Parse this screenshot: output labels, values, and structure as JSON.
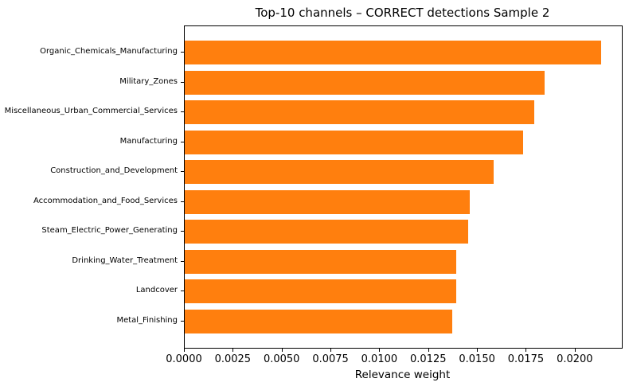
{
  "figure": {
    "background": "#ffffff"
  },
  "chart_data": {
    "type": "bar",
    "orientation": "horizontal",
    "title": "Top-10 channels – CORRECT detections Sample 2",
    "xlabel": "Relevance weight",
    "ylabel": "",
    "categories": [
      "Organic_Chemicals_Manufacturing",
      "Military_Zones",
      "Miscellaneous_Urban_Commercial_Services",
      "Manufacturing",
      "Construction_and_Development",
      "Accommodation_and_Food_Services",
      "Steam_Electric_Power_Generating",
      "Drinking_Water_Treatment",
      "Landcover",
      "Metal_Finishing"
    ],
    "values": [
      0.0213,
      0.0184,
      0.0179,
      0.0173,
      0.0158,
      0.0146,
      0.0145,
      0.0139,
      0.0139,
      0.0137
    ],
    "xlim": [
      0,
      0.02237
    ],
    "xticks": [
      {
        "value": 0.0,
        "label": "0.0000"
      },
      {
        "value": 0.0025,
        "label": "0.0025"
      },
      {
        "value": 0.005,
        "label": "0.0050"
      },
      {
        "value": 0.0075,
        "label": "0.0075"
      },
      {
        "value": 0.01,
        "label": "0.0100"
      },
      {
        "value": 0.0125,
        "label": "0.0125"
      },
      {
        "value": 0.015,
        "label": "0.0150"
      },
      {
        "value": 0.0175,
        "label": "0.0175"
      },
      {
        "value": 0.02,
        "label": "0.0200"
      }
    ],
    "grid": false,
    "bar_color": "#ff7f0e",
    "axis_color": "#000000",
    "text_color": "#000000"
  }
}
